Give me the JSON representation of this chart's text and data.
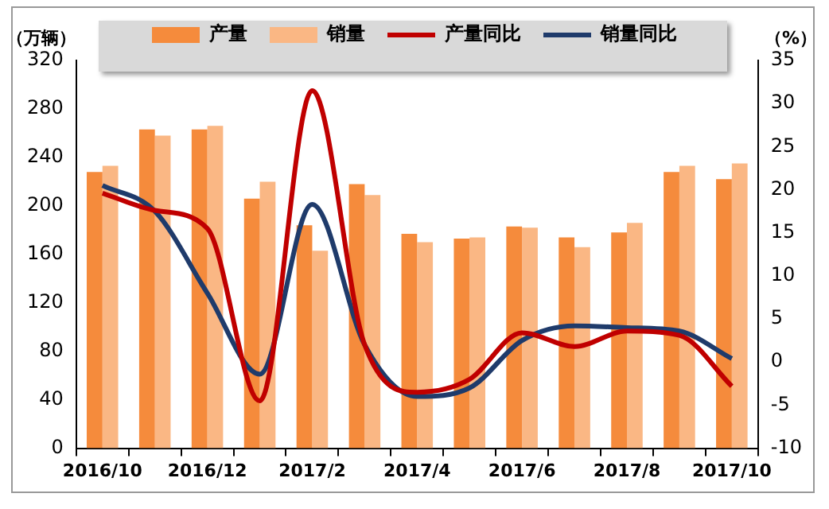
{
  "chart_data": {
    "type": "bar",
    "ylabel": "（万辆）",
    "y2label": "（%）",
    "categories": [
      "2016/10",
      null,
      "2016/12",
      null,
      "2017/2",
      null,
      "2017/4",
      null,
      "2017/6",
      null,
      "2017/8",
      null,
      "2017/10"
    ],
    "series": [
      {
        "name": "产量",
        "color": "#f58b3c",
        "values": [
          228,
          263,
          263,
          206,
          184,
          218,
          177,
          173,
          183,
          174,
          178,
          228,
          222
        ]
      },
      {
        "name": "销量",
        "color": "#fab784",
        "values": [
          233,
          258,
          266,
          220,
          163,
          209,
          170,
          174,
          182,
          166,
          186,
          233,
          235
        ]
      },
      {
        "name": "产量同比",
        "type": "line",
        "axis": "y2",
        "color": "#c00000",
        "values": [
          19.6,
          17.6,
          15.5,
          -4.5,
          31.5,
          2,
          -3.5,
          -2,
          3.4,
          1.8,
          3.6,
          3.1,
          -2.8
        ]
      },
      {
        "name": "销量同比",
        "type": "line",
        "axis": "y2",
        "color": "#1f3b6b",
        "values": [
          20.5,
          17.5,
          8,
          -1.4,
          18.3,
          2,
          -4,
          -3,
          2.5,
          4.2,
          4,
          3.6,
          0.4
        ]
      }
    ],
    "ylim": [
      0,
      320
    ],
    "yticks": [
      0,
      40,
      80,
      120,
      160,
      200,
      240,
      280,
      320
    ],
    "y2lim": [
      -10,
      35
    ],
    "y2ticks": [
      -10,
      -5,
      0,
      5,
      10,
      15,
      20,
      25,
      30,
      35
    ],
    "grid": false,
    "legend": "top",
    "marker": "none",
    "line_style": "solid"
  }
}
